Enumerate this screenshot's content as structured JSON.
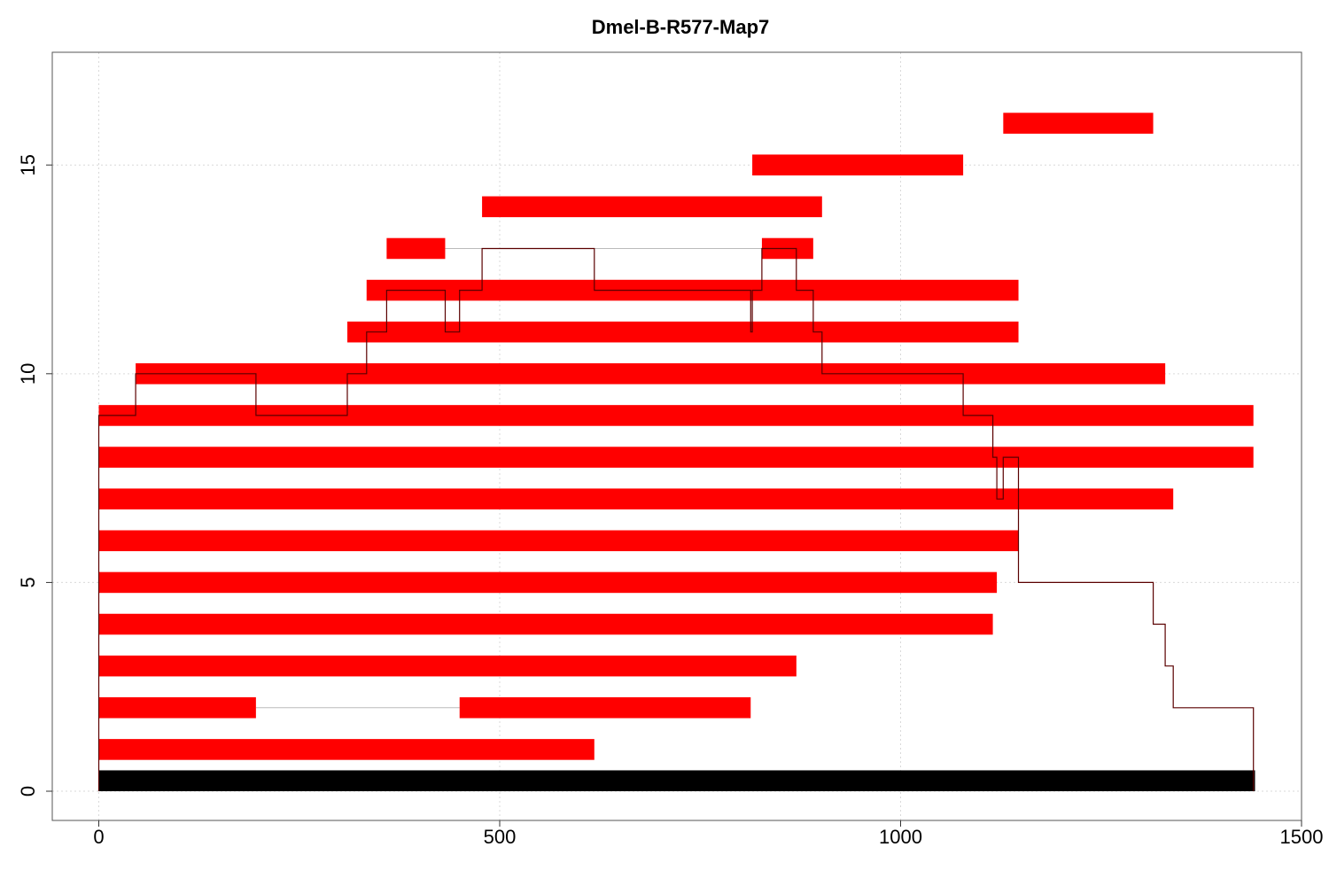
{
  "chart_data": {
    "type": "bar",
    "title": "Dmel-B-R577-Map7",
    "xlabel": "",
    "ylabel": "",
    "xlim": [
      -58,
      1500
    ],
    "ylim": [
      -0.7,
      17.7
    ],
    "x_ticks": [
      "0",
      "500",
      "1000",
      "1500"
    ],
    "y_ticks": [
      "0",
      "5",
      "10",
      "15"
    ],
    "grid": true,
    "colors": {
      "bar": "#ff0000",
      "reference": "#000000",
      "connector": "#bbbbbb",
      "coverage": "#5a0000",
      "grid": "#d9d9d9"
    },
    "reference": {
      "y": 0,
      "start": 0,
      "end": 1442
    },
    "reads": [
      {
        "y": 1,
        "segments": [
          [
            0,
            618
          ]
        ]
      },
      {
        "y": 2,
        "segments": [
          [
            0,
            196
          ],
          [
            450,
            813
          ]
        ]
      },
      {
        "y": 3,
        "segments": [
          [
            0,
            870
          ]
        ]
      },
      {
        "y": 4,
        "segments": [
          [
            0,
            1115
          ]
        ]
      },
      {
        "y": 5,
        "segments": [
          [
            0,
            1120
          ]
        ]
      },
      {
        "y": 6,
        "segments": [
          [
            0,
            1147
          ]
        ]
      },
      {
        "y": 7,
        "segments": [
          [
            0,
            1340
          ]
        ]
      },
      {
        "y": 8,
        "segments": [
          [
            0,
            1440
          ]
        ]
      },
      {
        "y": 9,
        "segments": [
          [
            0,
            1440
          ]
        ]
      },
      {
        "y": 10,
        "segments": [
          [
            46,
            1330
          ]
        ]
      },
      {
        "y": 11,
        "segments": [
          [
            310,
            1147
          ]
        ]
      },
      {
        "y": 12,
        "segments": [
          [
            334,
            1147
          ]
        ]
      },
      {
        "y": 13,
        "segments": [
          [
            359,
            432
          ],
          [
            827,
            891
          ]
        ]
      },
      {
        "y": 14,
        "segments": [
          [
            478,
            902
          ]
        ]
      },
      {
        "y": 15,
        "segments": [
          [
            815,
            1078
          ]
        ]
      },
      {
        "y": 16,
        "segments": [
          [
            1128,
            1315
          ]
        ]
      }
    ],
    "coverage": [
      [
        0,
        0
      ],
      [
        0,
        9
      ],
      [
        46,
        9
      ],
      [
        46,
        10
      ],
      [
        196,
        10
      ],
      [
        196,
        9
      ],
      [
        310,
        9
      ],
      [
        310,
        10
      ],
      [
        334,
        10
      ],
      [
        334,
        11
      ],
      [
        359,
        11
      ],
      [
        359,
        12
      ],
      [
        432,
        12
      ],
      [
        432,
        11
      ],
      [
        450,
        11
      ],
      [
        450,
        12
      ],
      [
        478,
        12
      ],
      [
        478,
        13
      ],
      [
        618,
        13
      ],
      [
        618,
        12
      ],
      [
        813,
        12
      ],
      [
        813,
        11
      ],
      [
        815,
        11
      ],
      [
        815,
        12
      ],
      [
        827,
        12
      ],
      [
        827,
        13
      ],
      [
        870,
        13
      ],
      [
        870,
        12
      ],
      [
        891,
        12
      ],
      [
        891,
        11
      ],
      [
        902,
        11
      ],
      [
        902,
        10
      ],
      [
        1078,
        10
      ],
      [
        1078,
        9
      ],
      [
        1115,
        9
      ],
      [
        1115,
        8
      ],
      [
        1120,
        8
      ],
      [
        1120,
        7
      ],
      [
        1128,
        7
      ],
      [
        1128,
        8
      ],
      [
        1147,
        8
      ],
      [
        1147,
        5
      ],
      [
        1315,
        5
      ],
      [
        1315,
        4
      ],
      [
        1330,
        4
      ],
      [
        1330,
        3
      ],
      [
        1340,
        3
      ],
      [
        1340,
        2
      ],
      [
        1440,
        2
      ],
      [
        1440,
        0
      ]
    ]
  }
}
